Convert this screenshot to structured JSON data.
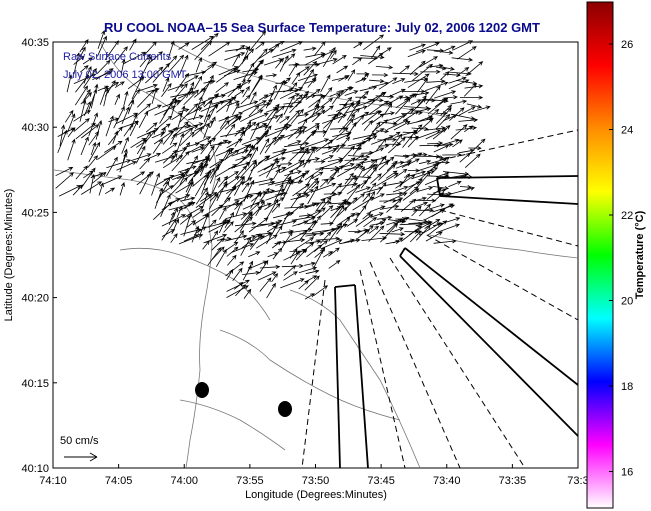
{
  "title": "RU COOL  NOAA–15  Sea Surface Temperature:  July 02, 2006 1202 GMT",
  "annotation": {
    "line1": "Raw Surface Currents",
    "line2": "July 02, 2006 13:00 GMT"
  },
  "scale_label": "50 cm/s",
  "axes": {
    "xlabel": "Longitude (Degrees:Minutes)",
    "ylabel": "Latitude (Degrees:Minutes)",
    "x_ticks": [
      "74:10",
      "74:05",
      "74:00",
      "73:55",
      "73:50",
      "73:45",
      "73:40",
      "73:35",
      "73:3"
    ],
    "y_ticks": [
      "40:35",
      "40:30",
      "40:25",
      "40:20",
      "40:15",
      "40:10"
    ]
  },
  "colorbar": {
    "label": "Temperature (°C)",
    "ticks": [
      "26",
      "24",
      "22",
      "20",
      "18",
      "16"
    ],
    "colors": [
      "#8b0000",
      "#ff0000",
      "#ff8c00",
      "#ffff00",
      "#00ff00",
      "#00ffff",
      "#0000ff",
      "#ff00ff",
      "#ffffff"
    ]
  },
  "colors": {
    "title": "#0a0a8c",
    "annotation": "#1f1fa8"
  }
}
